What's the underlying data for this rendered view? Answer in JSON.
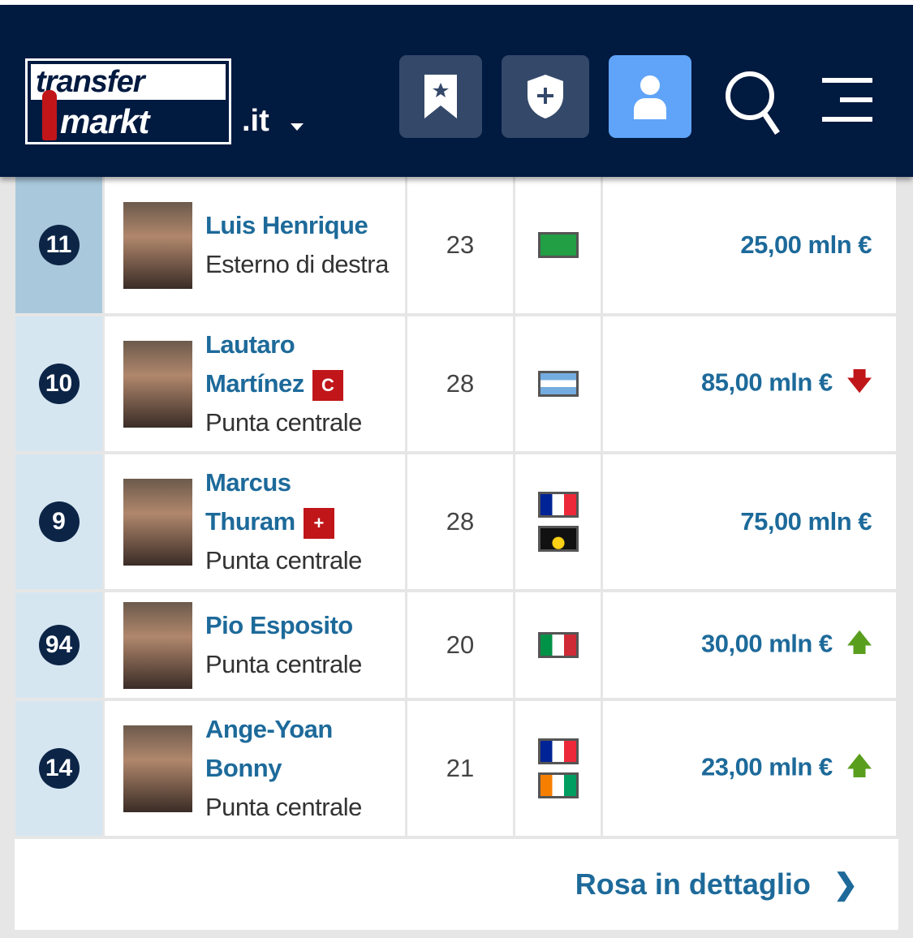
{
  "header": {
    "logo_text_1": "transfer",
    "logo_text_2": "markt",
    "domain": ".it",
    "icons": [
      "bookmark-star-icon",
      "shield-plus-icon",
      "user-icon",
      "search-icon",
      "menu-icon"
    ]
  },
  "colors": {
    "header_bg": "#011a40",
    "link": "#1d6a9a",
    "user_button": "#5fa4f8",
    "down": "#c0161a",
    "up": "#5a9e1e"
  },
  "players": [
    {
      "number": "11",
      "name_lines": [
        "Luis Henrique"
      ],
      "position": "Esterno di destra",
      "age": "23",
      "flags": [
        "brazil"
      ],
      "value": "25,00 mln €",
      "trend": "",
      "highlight": true
    },
    {
      "number": "10",
      "name_lines": [
        "Lautaro",
        "Martínez"
      ],
      "badge": "C",
      "badge_type": "captain",
      "position": "Punta centrale",
      "age": "28",
      "flags": [
        "argentina"
      ],
      "value": "85,00 mln €",
      "trend": "down"
    },
    {
      "number": "9",
      "name_lines": [
        "Marcus",
        "Thuram"
      ],
      "badge": "+",
      "badge_type": "injury",
      "position": "Punta centrale",
      "age": "28",
      "flags": [
        "france",
        "guadeloupe"
      ],
      "value": "75,00 mln €",
      "trend": ""
    },
    {
      "number": "94",
      "name_lines": [
        "Pio Esposito"
      ],
      "position": "Punta centrale",
      "age": "20",
      "flags": [
        "italy"
      ],
      "value": "30,00 mln €",
      "trend": "up"
    },
    {
      "number": "14",
      "name_lines": [
        "Ange-Yoan",
        "Bonny"
      ],
      "position": "Punta centrale",
      "age": "21",
      "flags": [
        "france",
        "ivory-coast"
      ],
      "value": "23,00 mln €",
      "trend": "up"
    }
  ],
  "footer": {
    "link_label": "Rosa in dettaglio"
  }
}
